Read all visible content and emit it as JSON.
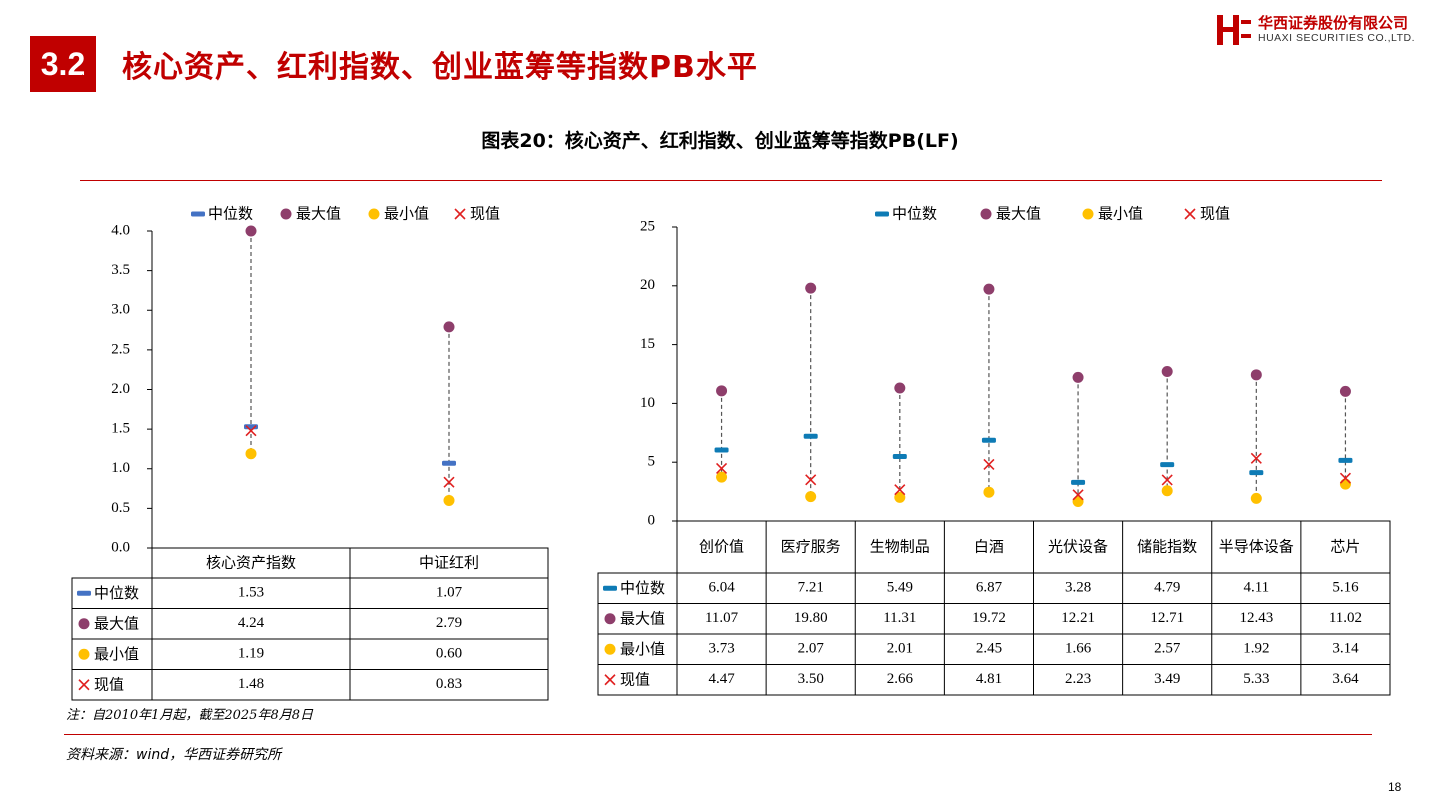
{
  "header": {
    "section_number": "3.2",
    "title": "核心资产、红利指数、创业蓝筹等指数PB水平",
    "logo_cn": "华西证券股份有限公司",
    "logo_en": "HUAXI SECURITIES CO.,LTD."
  },
  "figure_title": "图表20：核心资产、红利指数、创业蓝筹等指数PB(LF)",
  "note": "注：自2010年1月起，截至2025年8月8日",
  "source": "资料来源：wind，华西证券研究所",
  "page_number": "18",
  "colors": {
    "brand_red": "#c00000",
    "median_left": "#4472c4",
    "median_right": "#0e7bb5",
    "max": "#8e3e6b",
    "min": "#ffc000",
    "current": "#e02020"
  },
  "chart_data": [
    {
      "type": "table",
      "chart_kind": "range-dot-plot",
      "title": "",
      "legend": [
        "中位数",
        "最大值",
        "最小值",
        "现值"
      ],
      "legend_position": "top",
      "categories": [
        "核心资产指数",
        "中证红利"
      ],
      "ylim": [
        0,
        4.0
      ],
      "yticks": [
        "0.0",
        "0.5",
        "1.0",
        "1.5",
        "2.0",
        "2.5",
        "3.0",
        "3.5",
        "4.0"
      ],
      "ytick_values": [
        0,
        0.5,
        1.0,
        1.5,
        2.0,
        2.5,
        3.0,
        3.5,
        4.0
      ],
      "series": [
        {
          "name": "中位数",
          "values": [
            1.53,
            1.07
          ],
          "labels": [
            "1.53",
            "1.07"
          ]
        },
        {
          "name": "最大值",
          "values": [
            4.24,
            2.79
          ],
          "labels": [
            "4.24",
            "2.79"
          ]
        },
        {
          "name": "最小值",
          "values": [
            1.19,
            0.6
          ],
          "labels": [
            "1.19",
            "0.60"
          ]
        },
        {
          "name": "现值",
          "values": [
            1.48,
            0.83
          ],
          "labels": [
            "1.48",
            "0.83"
          ]
        }
      ]
    },
    {
      "type": "table",
      "chart_kind": "range-dot-plot",
      "title": "",
      "legend": [
        "中位数",
        "最大值",
        "最小值",
        "现值"
      ],
      "legend_position": "top",
      "categories": [
        "创价值",
        "医疗服务",
        "生物制品",
        "白酒",
        "光伏设备",
        "储能指数",
        "半导体设备",
        "芯片"
      ],
      "ylim": [
        0,
        25
      ],
      "yticks": [
        "0",
        "5",
        "10",
        "15",
        "20",
        "25"
      ],
      "ytick_values": [
        0,
        5,
        10,
        15,
        20,
        25
      ],
      "series": [
        {
          "name": "中位数",
          "values": [
            6.04,
            7.21,
            5.49,
            6.87,
            3.28,
            4.79,
            4.11,
            5.16
          ],
          "labels": [
            "6.04",
            "7.21",
            "5.49",
            "6.87",
            "3.28",
            "4.79",
            "4.11",
            "5.16"
          ]
        },
        {
          "name": "最大值",
          "values": [
            11.07,
            19.8,
            11.31,
            19.72,
            12.21,
            12.71,
            12.43,
            11.02
          ],
          "labels": [
            "11.07",
            "19.80",
            "11.31",
            "19.72",
            "12.21",
            "12.71",
            "12.43",
            "11.02"
          ]
        },
        {
          "name": "最小值",
          "values": [
            3.73,
            2.07,
            2.01,
            2.45,
            1.66,
            2.57,
            1.92,
            3.14
          ],
          "labels": [
            "3.73",
            "2.07",
            "2.01",
            "2.45",
            "1.66",
            "2.57",
            "1.92",
            "3.14"
          ]
        },
        {
          "name": "现值",
          "values": [
            4.47,
            3.5,
            2.66,
            4.81,
            2.23,
            3.49,
            5.33,
            3.64
          ],
          "labels": [
            "4.47",
            "3.50",
            "2.66",
            "4.81",
            "2.23",
            "3.49",
            "5.33",
            "3.64"
          ]
        }
      ]
    }
  ]
}
